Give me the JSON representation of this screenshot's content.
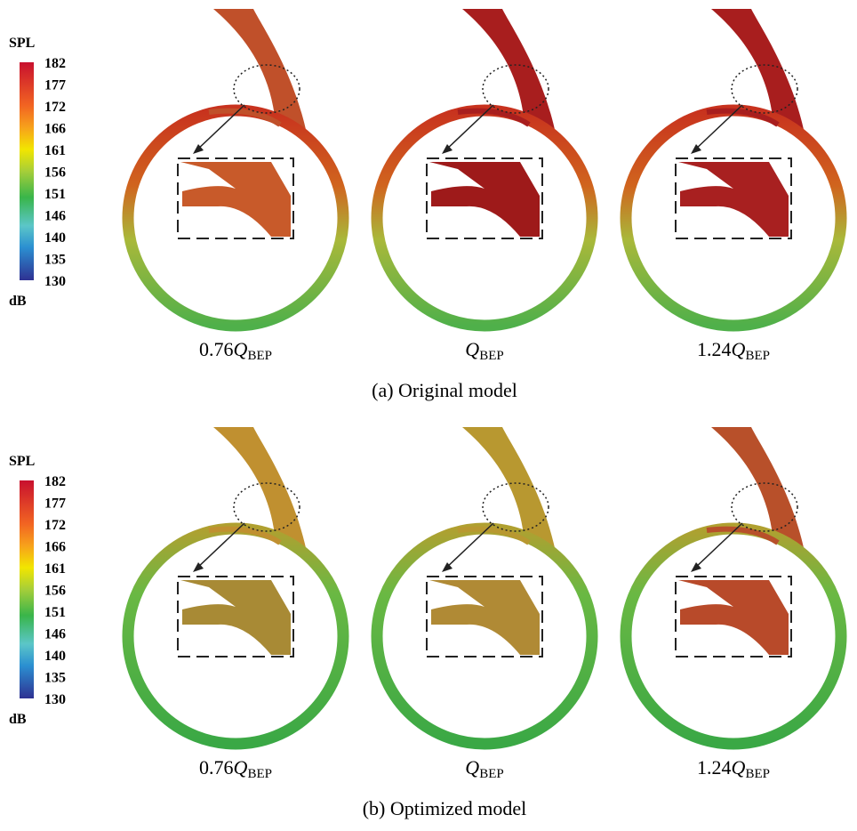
{
  "panels": [
    {
      "colorbar": {
        "title": "SPL",
        "unit": "dB",
        "ticks": [
          182,
          177,
          172,
          166,
          161,
          156,
          151,
          146,
          140,
          135,
          130
        ]
      },
      "cases": [
        {
          "prefix": "0.76",
          "symbol": "Q",
          "subscript": "BEP"
        },
        {
          "symbol": "Q",
          "subscript": "BEP"
        },
        {
          "prefix": "1.24",
          "symbol": "Q",
          "subscript": "BEP"
        }
      ],
      "caption": "(a) Original model"
    },
    {
      "colorbar": {
        "title": "SPL",
        "unit": "dB",
        "ticks": [
          182,
          177,
          172,
          166,
          161,
          156,
          151,
          146,
          140,
          135,
          130
        ]
      },
      "cases": [
        {
          "prefix": "0.76",
          "symbol": "Q",
          "subscript": "BEP"
        },
        {
          "symbol": "Q",
          "subscript": "BEP"
        },
        {
          "prefix": "1.24",
          "symbol": "Q",
          "subscript": "BEP"
        }
      ],
      "caption": "(b) Optimized model"
    }
  ]
}
